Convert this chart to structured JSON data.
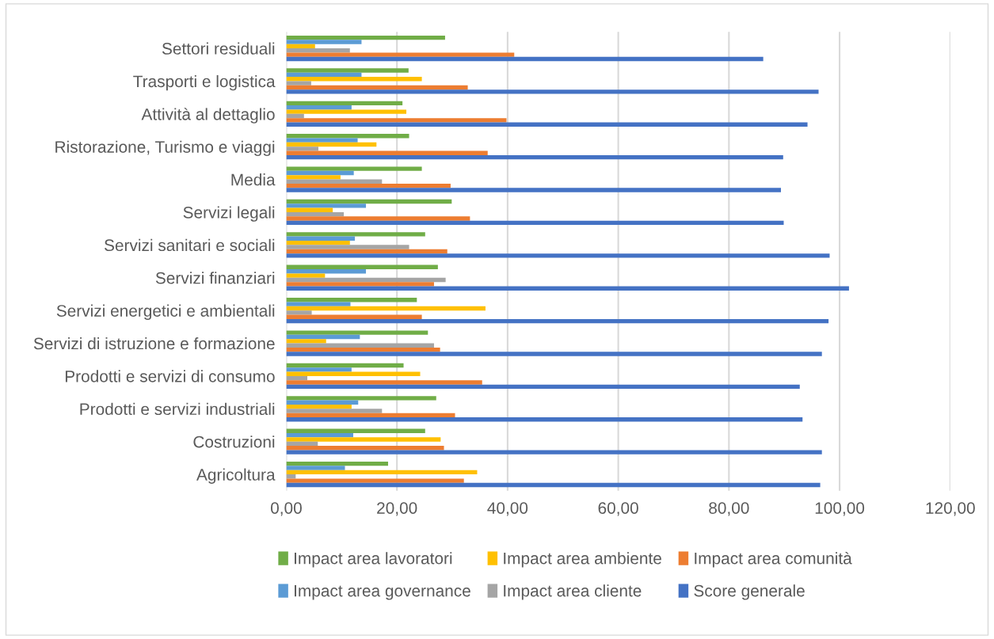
{
  "chart_data": {
    "type": "bar",
    "orientation": "horizontal",
    "categories": [
      "Settori residuali",
      "Trasporti e logistica",
      "Attività al dettaglio",
      "Ristorazione, Turismo e viaggi",
      "Media",
      "Servizi legali",
      "Servizi sanitari e sociali",
      "Servizi finanziari",
      "Servizi energetici e ambientali",
      "Servizi di istruzione e formazione",
      "Prodotti e servizi di consumo",
      "Prodotti e servizi industriali",
      "Costruzioni",
      "Agricoltura"
    ],
    "series": [
      {
        "name": "Impact area lavoratori",
        "color": "#70ad47",
        "values": [
          28.7,
          22.1,
          21.0,
          22.2,
          24.5,
          29.9,
          25.1,
          27.4,
          23.6,
          25.6,
          21.2,
          27.1,
          25.1,
          18.4
        ]
      },
      {
        "name": "Impact area governance",
        "color": "#5b9bd5",
        "values": [
          13.6,
          13.6,
          11.8,
          12.9,
          12.2,
          14.4,
          12.4,
          14.4,
          11.6,
          13.3,
          11.8,
          13.0,
          12.1,
          10.6
        ]
      },
      {
        "name": "Impact area ambiente",
        "color": "#ffc000",
        "values": [
          5.2,
          24.5,
          21.7,
          16.3,
          9.8,
          8.4,
          11.5,
          7.0,
          36.0,
          7.2,
          24.2,
          11.8,
          27.9,
          34.5
        ]
      },
      {
        "name": "Impact area cliente",
        "color": "#a5a5a5",
        "values": [
          11.5,
          4.5,
          3.2,
          5.8,
          17.3,
          10.4,
          22.2,
          28.8,
          4.6,
          26.7,
          3.8,
          17.3,
          5.7,
          1.7
        ]
      },
      {
        "name": "Impact area comunità",
        "color": "#ed7d31",
        "values": [
          41.2,
          32.8,
          39.8,
          36.4,
          29.7,
          33.2,
          29.1,
          26.7,
          24.5,
          27.8,
          35.4,
          30.5,
          28.5,
          32.1
        ]
      },
      {
        "name": "Score generale",
        "color": "#4472c4",
        "values": [
          86.2,
          96.2,
          94.2,
          89.8,
          89.4,
          89.9,
          98.2,
          101.7,
          98.0,
          96.8,
          92.8,
          93.3,
          96.8,
          96.5
        ]
      }
    ],
    "xlim": [
      0,
      120
    ],
    "xticks": [
      {
        "value": 0,
        "label": "0,00"
      },
      {
        "value": 20,
        "label": "20,00"
      },
      {
        "value": 40,
        "label": "40,00"
      },
      {
        "value": 60,
        "label": "60,00"
      },
      {
        "value": 80,
        "label": "80,00"
      },
      {
        "value": 100,
        "label": "100,00"
      },
      {
        "value": 120,
        "label": "120,00"
      }
    ],
    "grid": "x",
    "legend": "bottom"
  }
}
